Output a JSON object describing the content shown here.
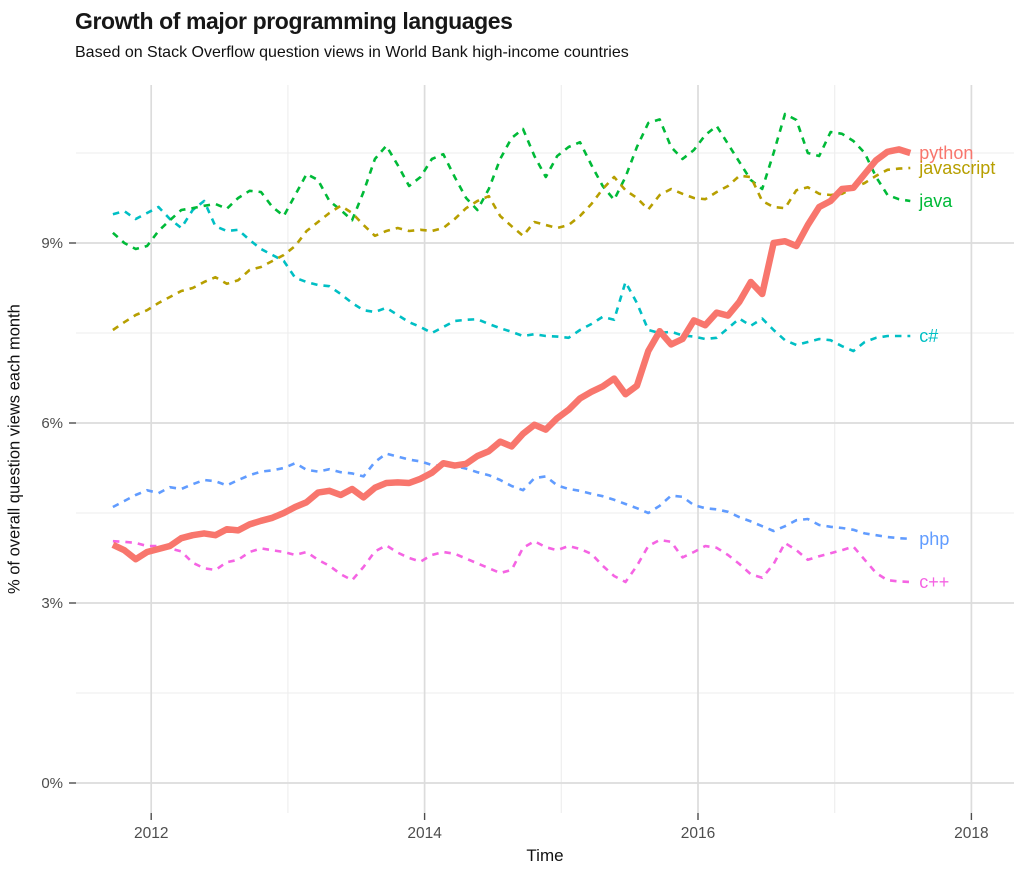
{
  "chart_data": {
    "type": "line",
    "title": "Growth of major programming languages",
    "subtitle": "Based on Stack Overflow question views in World Bank high-income countries",
    "xlabel": "Time",
    "ylabel": "% of overall question views each month",
    "grid": true,
    "legend_position": "right-of-lines-inline",
    "x_start": 2011.72,
    "x_step_years": 0.08333,
    "xlim": [
      2011.45,
      2018.31
    ],
    "ylim": [
      0,
      12.1
    ],
    "x_ticks": [
      {
        "value": 2012,
        "label": "2012"
      },
      {
        "value": 2014,
        "label": "2014"
      },
      {
        "value": 2016,
        "label": "2016"
      },
      {
        "value": 2018,
        "label": "2018"
      }
    ],
    "x_minor_ticks": [
      2013,
      2015,
      2017
    ],
    "y_ticks": [
      {
        "value": 0,
        "label": "0%"
      },
      {
        "value": 3,
        "label": "3%"
      },
      {
        "value": 6,
        "label": "6%"
      },
      {
        "value": 9,
        "label": "9%"
      }
    ],
    "y_minor_ticks": [
      1.5,
      4.5,
      7.5,
      10.5
    ],
    "series": [
      {
        "name": "python",
        "color": "#F8766D",
        "line_style": "solid",
        "line_width": 6.5,
        "values": [
          3.97,
          3.88,
          3.73,
          3.85,
          3.9,
          3.95,
          4.08,
          4.13,
          4.16,
          4.13,
          4.23,
          4.21,
          4.31,
          4.37,
          4.42,
          4.5,
          4.6,
          4.68,
          4.84,
          4.87,
          4.8,
          4.9,
          4.76,
          4.92,
          5.0,
          5.01,
          5.0,
          5.07,
          5.17,
          5.33,
          5.29,
          5.32,
          5.45,
          5.53,
          5.69,
          5.61,
          5.82,
          5.97,
          5.89,
          6.08,
          6.22,
          6.41,
          6.52,
          6.61,
          6.74,
          6.48,
          6.62,
          7.2,
          7.53,
          7.31,
          7.4,
          7.71,
          7.63,
          7.84,
          7.79,
          8.02,
          8.35,
          8.15,
          9.0,
          9.03,
          8.95,
          9.3,
          9.6,
          9.7,
          9.9,
          9.92,
          10.15,
          10.38,
          10.52,
          10.56,
          10.5
        ]
      },
      {
        "name": "javascript",
        "color": "#B79F00",
        "line_style": "dashed",
        "line_width": 2.6,
        "values": [
          7.55,
          7.68,
          7.8,
          7.88,
          8.0,
          8.1,
          8.2,
          8.25,
          8.35,
          8.43,
          8.32,
          8.38,
          8.55,
          8.6,
          8.7,
          8.8,
          8.95,
          9.2,
          9.35,
          9.5,
          9.62,
          9.5,
          9.3,
          9.12,
          9.2,
          9.25,
          9.2,
          9.22,
          9.2,
          9.25,
          9.4,
          9.58,
          9.7,
          9.78,
          9.45,
          9.28,
          9.12,
          9.35,
          9.3,
          9.25,
          9.3,
          9.45,
          9.65,
          9.9,
          10.1,
          9.88,
          9.75,
          9.56,
          9.8,
          9.9,
          9.82,
          9.75,
          9.73,
          9.85,
          9.95,
          10.12,
          10.1,
          9.7,
          9.6,
          9.58,
          9.88,
          9.93,
          9.82,
          9.8,
          9.82,
          9.92,
          10.0,
          10.12,
          10.22,
          10.24,
          10.25
        ]
      },
      {
        "name": "java",
        "color": "#00BA38",
        "line_style": "dashed",
        "line_width": 2.6,
        "values": [
          9.17,
          9.0,
          8.9,
          8.95,
          9.2,
          9.38,
          9.55,
          9.58,
          9.62,
          9.65,
          9.57,
          9.75,
          9.87,
          9.85,
          9.6,
          9.45,
          9.8,
          10.15,
          10.05,
          9.7,
          9.55,
          9.38,
          9.85,
          10.4,
          10.62,
          10.3,
          9.95,
          10.1,
          10.4,
          10.48,
          10.1,
          9.75,
          9.55,
          9.9,
          10.4,
          10.75,
          10.9,
          10.45,
          10.1,
          10.45,
          10.6,
          10.68,
          10.3,
          9.95,
          9.72,
          10.1,
          10.6,
          11.0,
          11.06,
          10.6,
          10.4,
          10.55,
          10.8,
          10.95,
          10.65,
          10.35,
          10.05,
          9.9,
          10.5,
          11.15,
          11.05,
          10.5,
          10.45,
          10.85,
          10.82,
          10.7,
          10.5,
          10.1,
          9.8,
          9.73,
          9.7
        ]
      },
      {
        "name": "c#",
        "color": "#00BFC4",
        "line_style": "dashed",
        "line_width": 2.6,
        "values": [
          9.48,
          9.53,
          9.4,
          9.5,
          9.6,
          9.4,
          9.25,
          9.55,
          9.7,
          9.28,
          9.2,
          9.22,
          9.05,
          8.9,
          8.8,
          8.7,
          8.42,
          8.35,
          8.3,
          8.28,
          8.15,
          8.0,
          7.88,
          7.85,
          7.92,
          7.8,
          7.68,
          7.6,
          7.5,
          7.6,
          7.7,
          7.72,
          7.73,
          7.65,
          7.58,
          7.52,
          7.45,
          7.48,
          7.45,
          7.44,
          7.42,
          7.55,
          7.65,
          7.77,
          7.72,
          8.35,
          8.0,
          7.55,
          7.5,
          7.52,
          7.46,
          7.44,
          7.4,
          7.42,
          7.58,
          7.74,
          7.62,
          7.74,
          7.55,
          7.38,
          7.3,
          7.35,
          7.4,
          7.38,
          7.28,
          7.2,
          7.35,
          7.42,
          7.45,
          7.45,
          7.45
        ]
      },
      {
        "name": "php",
        "color": "#619CFF",
        "line_style": "dashed",
        "line_width": 2.6,
        "values": [
          4.6,
          4.7,
          4.8,
          4.88,
          4.83,
          4.93,
          4.9,
          4.98,
          5.05,
          5.03,
          4.96,
          5.05,
          5.13,
          5.19,
          5.21,
          5.25,
          5.33,
          5.22,
          5.19,
          5.23,
          5.18,
          5.16,
          5.11,
          5.35,
          5.49,
          5.44,
          5.39,
          5.36,
          5.3,
          5.28,
          5.28,
          5.24,
          5.18,
          5.13,
          5.05,
          4.95,
          4.88,
          5.08,
          5.11,
          4.96,
          4.9,
          4.87,
          4.82,
          4.78,
          4.72,
          4.65,
          4.58,
          4.5,
          4.62,
          4.79,
          4.77,
          4.63,
          4.58,
          4.56,
          4.52,
          4.43,
          4.36,
          4.28,
          4.2,
          4.28,
          4.38,
          4.4,
          4.3,
          4.27,
          4.25,
          4.22,
          4.16,
          4.13,
          4.1,
          4.08,
          4.07
        ]
      },
      {
        "name": "c++",
        "color": "#F564E3",
        "line_style": "dashed",
        "line_width": 2.6,
        "values": [
          4.03,
          4.02,
          4.0,
          3.95,
          3.95,
          3.91,
          3.86,
          3.67,
          3.58,
          3.55,
          3.68,
          3.72,
          3.85,
          3.91,
          3.88,
          3.85,
          3.8,
          3.85,
          3.72,
          3.62,
          3.48,
          3.38,
          3.6,
          3.86,
          3.96,
          3.84,
          3.75,
          3.69,
          3.8,
          3.85,
          3.82,
          3.74,
          3.66,
          3.58,
          3.5,
          3.55,
          3.92,
          4.03,
          3.93,
          3.88,
          3.95,
          3.9,
          3.82,
          3.62,
          3.45,
          3.35,
          3.62,
          3.95,
          4.05,
          4.02,
          3.76,
          3.85,
          3.95,
          3.92,
          3.8,
          3.65,
          3.48,
          3.42,
          3.65,
          4.0,
          3.88,
          3.72,
          3.78,
          3.83,
          3.88,
          3.94,
          3.72,
          3.5,
          3.38,
          3.36,
          3.35
        ]
      }
    ],
    "colors": {
      "grid_major": "#dcdcdc",
      "grid_minor": "#eeeeee",
      "tick_mark": "#4d4d4d",
      "tick_label": "#4d4d4d",
      "title_text": "#171717"
    }
  }
}
